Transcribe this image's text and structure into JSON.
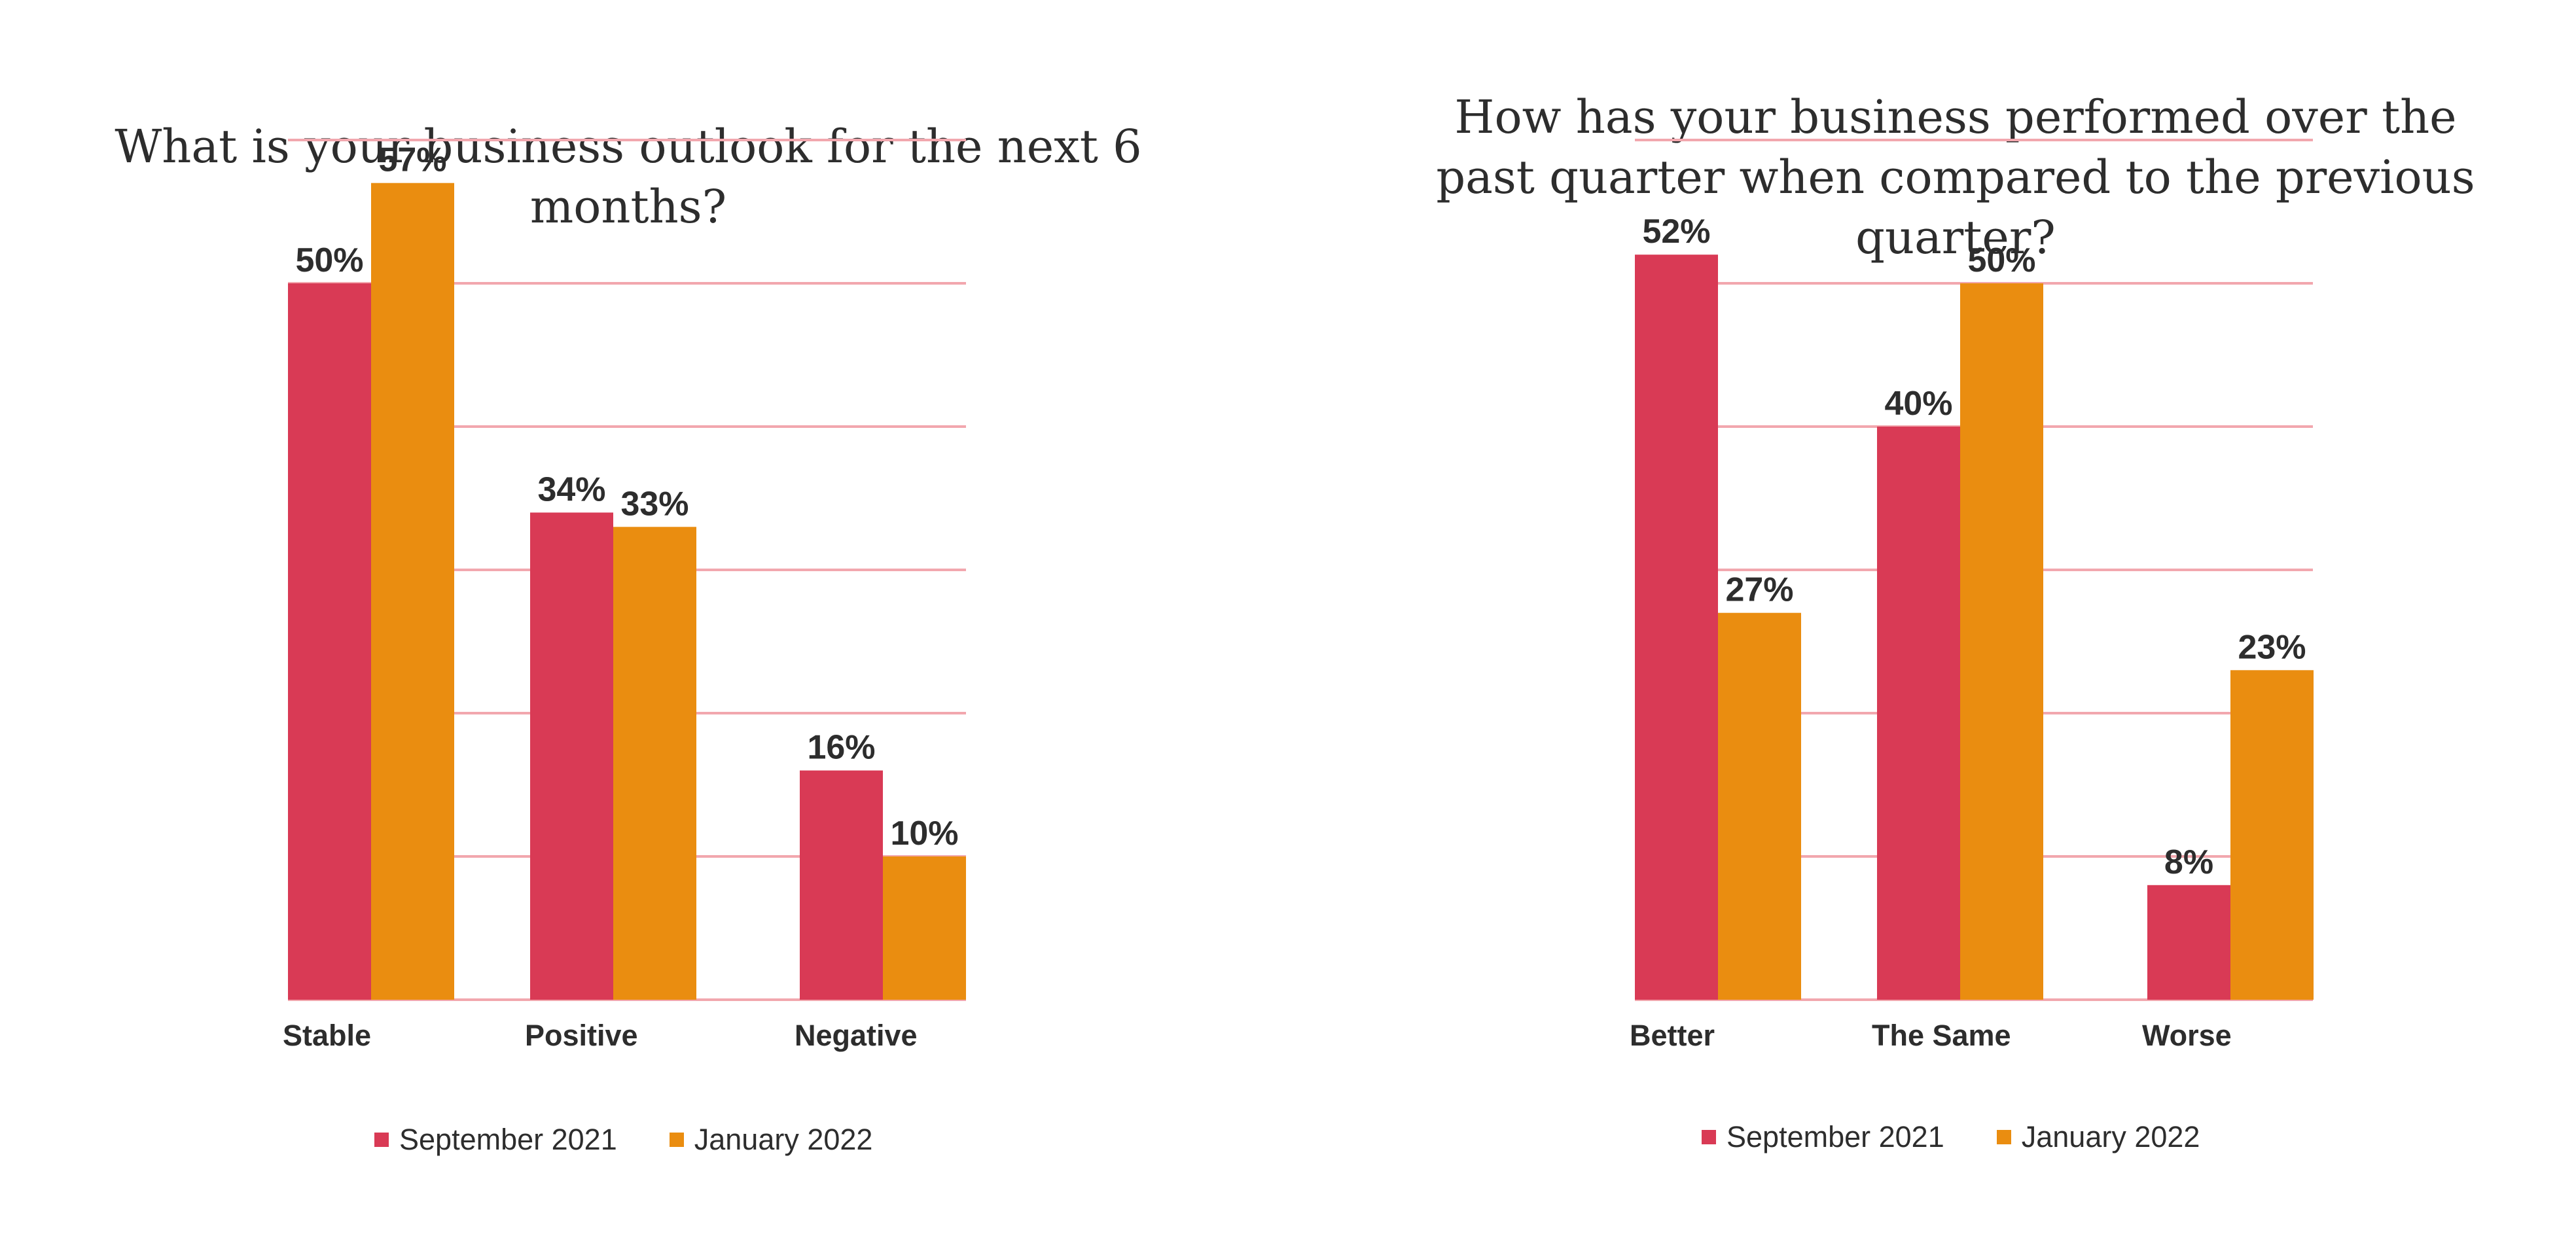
{
  "colors": {
    "september_2021": "#D93A55",
    "january_2022": "#EA8D10",
    "gridline": "#F2A7AE",
    "text": "#2d2d2d"
  },
  "chart_data": [
    {
      "type": "bar",
      "title": "What is your business outlook for the next 6 months?",
      "categories": [
        "Stable",
        "Positive",
        "Negative"
      ],
      "series": [
        {
          "name": "September 2021",
          "values": [
            50,
            34,
            16
          ],
          "labels": [
            "50%",
            "34%",
            "16%"
          ]
        },
        {
          "name": "January 2022",
          "values": [
            57,
            33,
            10
          ],
          "labels": [
            "57%",
            "33%",
            "10%"
          ]
        }
      ],
      "ylim": [
        0,
        70
      ],
      "grid": true,
      "legend": "bottom"
    },
    {
      "type": "bar",
      "title": "How has your business performed over the past quarter when compared to the previous quarter?",
      "categories": [
        "Better",
        "The Same",
        "Worse"
      ],
      "series": [
        {
          "name": "September 2021",
          "values": [
            52,
            40,
            8
          ],
          "labels": [
            "52%",
            "40%",
            "8%"
          ]
        },
        {
          "name": "January 2022",
          "values": [
            27,
            50,
            23
          ],
          "labels": [
            "27%",
            "50%",
            "23%"
          ]
        }
      ],
      "ylim": [
        0,
        70
      ],
      "grid": true,
      "legend": "bottom"
    }
  ]
}
